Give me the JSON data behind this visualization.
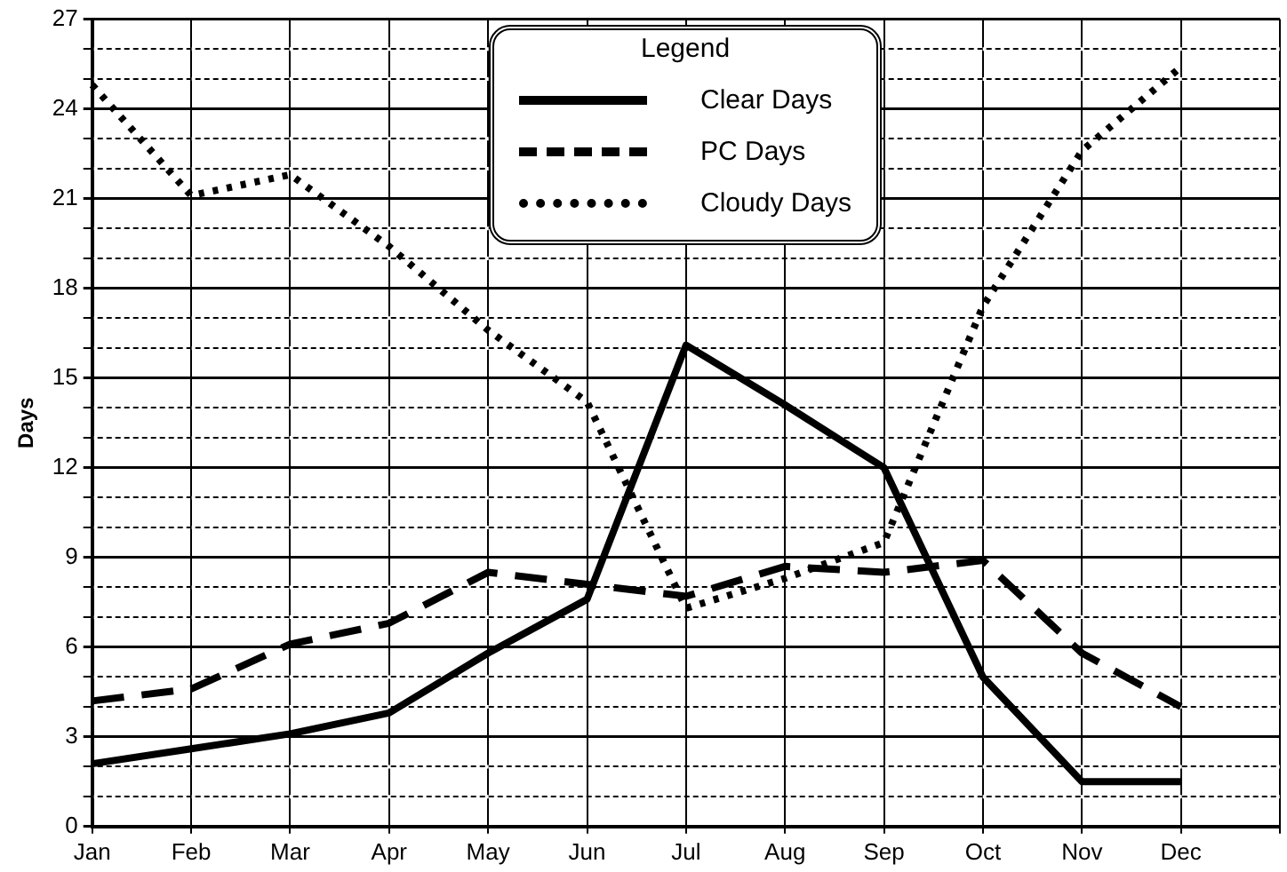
{
  "chart_data": {
    "type": "line",
    "ylabel": "Days",
    "legend_title": "Legend",
    "legend": "top",
    "grid": true,
    "marker": "none",
    "categories": [
      "Jan",
      "Feb",
      "Mar",
      "Apr",
      "May",
      "Jun",
      "Jul",
      "Aug",
      "Sep",
      "Oct",
      "Nov",
      "Dec"
    ],
    "ylim": [
      0,
      27
    ],
    "yticks": [
      0,
      {
        "value": 1,
        "label": null
      },
      {
        "value": 2,
        "label": null
      },
      3,
      {
        "value": 4,
        "label": null
      },
      {
        "value": 5,
        "label": null
      },
      6,
      {
        "value": 7,
        "label": null
      },
      {
        "value": 8,
        "label": null
      },
      9,
      {
        "value": 10,
        "label": null
      },
      {
        "value": 11,
        "label": null
      },
      12,
      {
        "value": 13,
        "label": null
      },
      {
        "value": 14,
        "label": null
      },
      15,
      {
        "value": 16,
        "label": null
      },
      {
        "value": 17,
        "label": null
      },
      18,
      {
        "value": 19,
        "label": null
      },
      {
        "value": 20,
        "label": null
      },
      21,
      {
        "value": 22,
        "label": null
      },
      {
        "value": 23,
        "label": null
      },
      24,
      {
        "value": 25,
        "label": null
      },
      {
        "value": 26,
        "label": null
      },
      27
    ],
    "series": [
      {
        "name": "Clear Days",
        "color": "#000000",
        "line_style": "solid",
        "values": [
          2.1,
          2.6,
          3.1,
          3.8,
          5.8,
          7.6,
          16.1,
          14.1,
          12.0,
          5.0,
          1.5,
          1.5
        ]
      },
      {
        "name": "PC Days",
        "color": "#000000",
        "line_style": "dashed",
        "values": [
          4.2,
          4.6,
          6.1,
          6.8,
          8.5,
          8.1,
          7.7,
          8.7,
          8.5,
          8.9,
          5.8,
          4.0
        ]
      },
      {
        "name": "Cloudy Days",
        "color": "#000000",
        "line_style": "dotted",
        "values": [
          24.8,
          21.1,
          21.8,
          19.4,
          16.6,
          14.2,
          7.3,
          8.3,
          9.5,
          17.4,
          22.6,
          25.4
        ]
      }
    ]
  }
}
